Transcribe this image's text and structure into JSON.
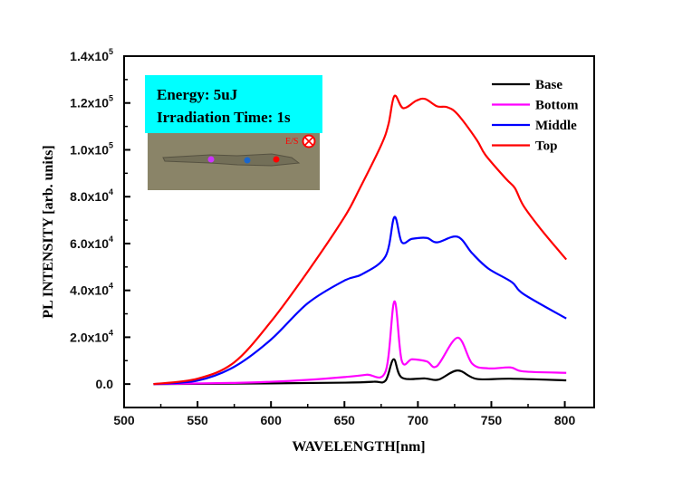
{
  "chart_data": {
    "type": "line",
    "xlabel": "WAVELENGTH[nm]",
    "ylabel": "PL INTENSITY [arb. units]",
    "xlim": [
      500,
      820
    ],
    "ylim": [
      -10000,
      140000
    ],
    "x_ticks": [
      500,
      550,
      600,
      650,
      700,
      750,
      800
    ],
    "y_ticks": [
      {
        "value": 0,
        "mantissa": "0.0",
        "exp": ""
      },
      {
        "value": 20000,
        "mantissa": "2.0x10",
        "exp": "4"
      },
      {
        "value": 40000,
        "mantissa": "4.0x10",
        "exp": "4"
      },
      {
        "value": 60000,
        "mantissa": "6.0x10",
        "exp": "4"
      },
      {
        "value": 80000,
        "mantissa": "8.0x10",
        "exp": "4"
      },
      {
        "value": 100000,
        "mantissa": "1.0x10",
        "exp": "5"
      },
      {
        "value": 120000,
        "mantissa": "1.2x10",
        "exp": "5"
      },
      {
        "value": 140000,
        "mantissa": "1.4x10",
        "exp": "5"
      }
    ],
    "grid": false,
    "legend_position": "top-right",
    "series": [
      {
        "name": "Base",
        "color": "#000000",
        "x": [
          520,
          600,
          650,
          670,
          678,
          683.5,
          689,
          705,
          714,
          727,
          740,
          763,
          801
        ],
        "y": [
          0,
          300,
          600,
          1000,
          1500,
          10600,
          2800,
          2400,
          1900,
          5800,
          2200,
          2300,
          1600
        ]
      },
      {
        "name": "Bottom",
        "color": "#ff00ff",
        "x": [
          520,
          575,
          600,
          625,
          650,
          665,
          678,
          684,
          689,
          696,
          706,
          713,
          727,
          737,
          748,
          763,
          772,
          801
        ],
        "y": [
          0,
          500,
          1000,
          1800,
          3000,
          4000,
          5400,
          35300,
          10000,
          10600,
          9700,
          7700,
          19800,
          8700,
          6700,
          7100,
          5400,
          4800
        ]
      },
      {
        "name": "Middle",
        "color": "#0000ff",
        "x": [
          520,
          550,
          575,
          600,
          625,
          650,
          662,
          678,
          684,
          689,
          696,
          706,
          713,
          727,
          737,
          748,
          764,
          772,
          801
        ],
        "y": [
          0,
          1500,
          7400,
          19000,
          34500,
          44200,
          46900,
          54600,
          71300,
          60600,
          62000,
          62400,
          60500,
          62900,
          55800,
          49300,
          43500,
          38400,
          28000
        ]
      },
      {
        "name": "Top",
        "color": "#ff0000",
        "x": [
          520,
          550,
          575,
          600,
          625,
          650,
          660,
          675,
          680,
          684,
          690,
          699,
          705,
          713,
          720,
          727,
          740,
          746,
          760,
          766,
          772,
          785,
          801
        ],
        "y": [
          0,
          2300,
          9300,
          26700,
          48000,
          71300,
          83000,
          102000,
          111000,
          123000,
          117800,
          121000,
          121700,
          118600,
          118200,
          115200,
          104300,
          97800,
          87600,
          83700,
          76000,
          65100,
          53200
        ]
      }
    ]
  },
  "inset": {
    "energy_text": "Energy: 5uJ",
    "irradiation_text": "Irradiation Time: 1s",
    "box_color": "#00ffff",
    "es_label": "E/S",
    "marker_colors": [
      "#cc33ff",
      "#1a66cc",
      "#ff0000"
    ]
  }
}
